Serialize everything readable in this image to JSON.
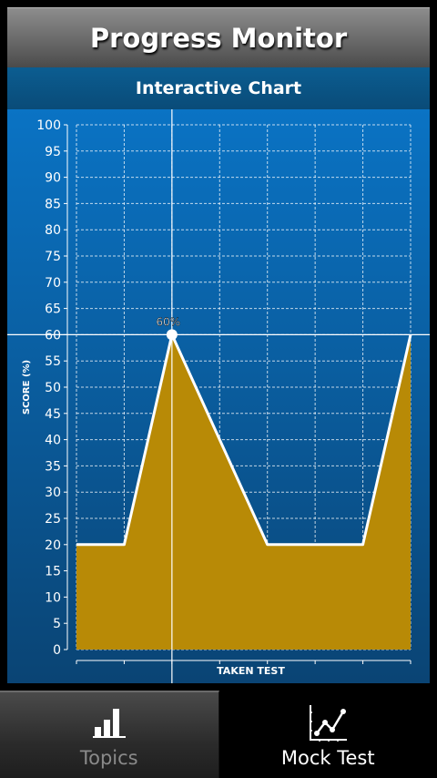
{
  "app": {
    "title": "Progress Monitor"
  },
  "subheader": {
    "title": "Interactive Chart"
  },
  "tabs": [
    {
      "label": "Topics",
      "icon": "bar-chart-icon",
      "active": false
    },
    {
      "label": "Mock Test",
      "icon": "line-chart-icon",
      "active": true
    }
  ],
  "colors": {
    "chart_bg_top": "#0a73c4",
    "chart_bg_bottom": "#0a4474",
    "area_fill": "#b88a06",
    "line": "#ffffff"
  },
  "chart_data": {
    "type": "area",
    "title": "",
    "xlabel": "TAKEN TEST",
    "ylabel": "SCORE (%)",
    "x": [
      1,
      2,
      3,
      4,
      5,
      6,
      7,
      8
    ],
    "values": [
      20,
      20,
      60,
      40,
      20,
      20,
      20,
      60
    ],
    "ylim": [
      0,
      100
    ],
    "yticks": [
      0,
      5,
      10,
      15,
      20,
      25,
      30,
      35,
      40,
      45,
      50,
      55,
      60,
      65,
      70,
      75,
      80,
      85,
      90,
      95,
      100
    ],
    "grid": true,
    "crosshair": {
      "x": 3,
      "y": 60,
      "label": "60%"
    }
  }
}
